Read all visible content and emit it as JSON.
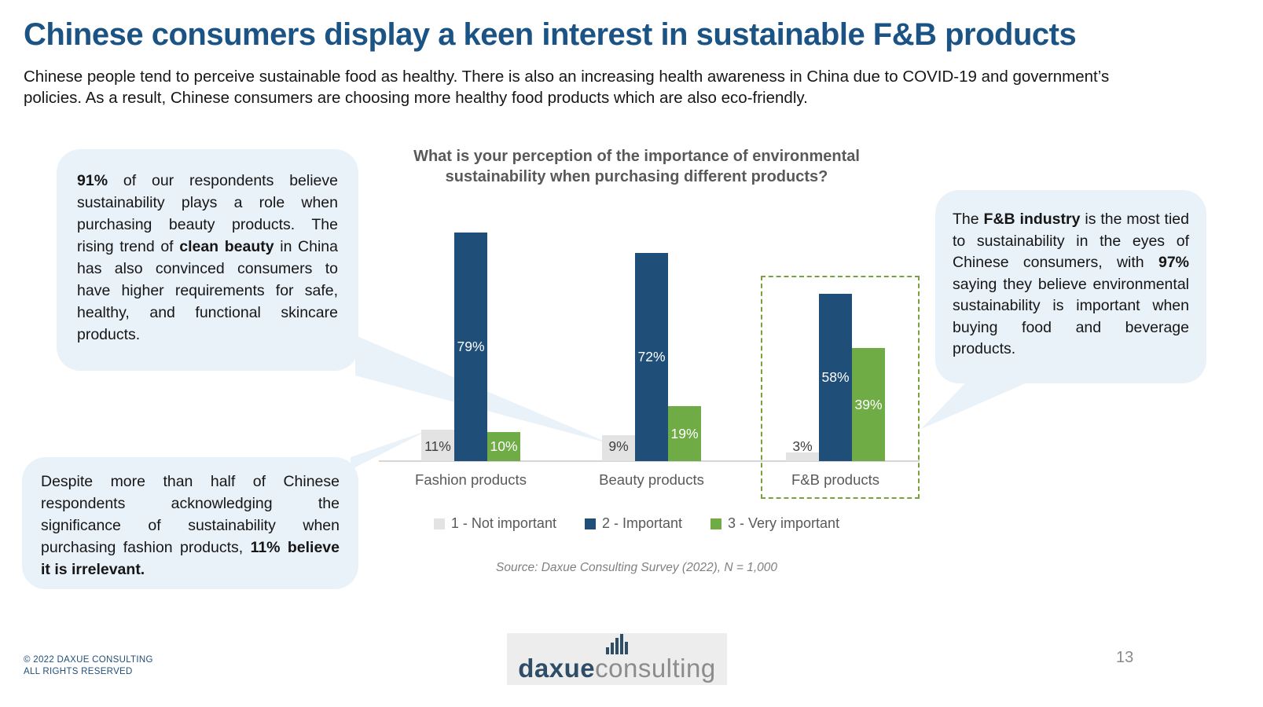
{
  "slide": {
    "title": "Chinese consumers display a keen interest in sustainable F&B products",
    "subtitle": "Chinese people tend to perceive sustainable food as healthy. There is also an increasing health awareness in China due to COVID-19 and government’s policies. As a result, Chinese consumers are choosing more healthy food products which are also eco-friendly.",
    "page_number": "13",
    "footer_line1": "© 2022 DAXUE CONSULTING",
    "footer_line2": "ALL RIGHTS RESERVED",
    "logo_text_primary": "daxue",
    "logo_text_secondary": "consulting"
  },
  "icons": {
    "logo_icon": "bar-chart-icon"
  },
  "colors": {
    "title": "#1B5385",
    "bubble_background": "#E9F1F9",
    "highlight_box": "#7AA23C",
    "axis": "#D6D6D6"
  },
  "bubbles": {
    "beauty": {
      "segments": [
        {
          "text": "91%",
          "bold": true
        },
        {
          "text": " of our respondents believe sustainability plays a role when purchasing beauty products. The rising trend of ",
          "bold": false
        },
        {
          "text": "clean beauty",
          "bold": true
        },
        {
          "text": " in China has also convinced consumers to have higher requirements for safe, healthy, and functional skincare products.",
          "bold": false
        }
      ]
    },
    "fashion": {
      "segments": [
        {
          "text": "Despite more than half of Chinese respondents acknowledging the significance of sustainability when purchasing fashion products, ",
          "bold": false
        },
        {
          "text": "11% believe it is irrelevant.",
          "bold": true
        }
      ]
    },
    "fnb": {
      "segments": [
        {
          "text": "The ",
          "bold": false
        },
        {
          "text": "F&B industry",
          "bold": true
        },
        {
          "text": " is the most tied to sustainability in the eyes of Chinese consumers, with ",
          "bold": false
        },
        {
          "text": "97%",
          "bold": true
        },
        {
          "text": " saying they believe environmental sustainability is important when buying food and beverage products.",
          "bold": false
        }
      ]
    }
  },
  "chart_data": {
    "type": "bar",
    "title": "What is your perception of the importance of environmental sustainability when purchasing different products?",
    "categories": [
      "Fashion products",
      "Beauty products",
      "F&B products"
    ],
    "series": [
      {
        "name": "1 - Not important",
        "values": [
          11,
          9,
          3
        ],
        "color": "#E3E3E3",
        "label_color": "#3F3F3F"
      },
      {
        "name": "2 - Important",
        "values": [
          79,
          72,
          58
        ],
        "color": "#1F4E79",
        "label_color": "#FFFFFF"
      },
      {
        "name": "3 - Very important",
        "values": [
          10,
          19,
          39
        ],
        "color": "#6FAC46",
        "label_color": "#FFFFFF"
      }
    ],
    "value_suffix": "%",
    "ylim": [
      0,
      80
    ],
    "grid": false,
    "legend_position": "bottom",
    "highlight": "F&B products group outlined with green dashed box",
    "source": "Source: Daxue Consulting Survey (2022), N = 1,000"
  }
}
